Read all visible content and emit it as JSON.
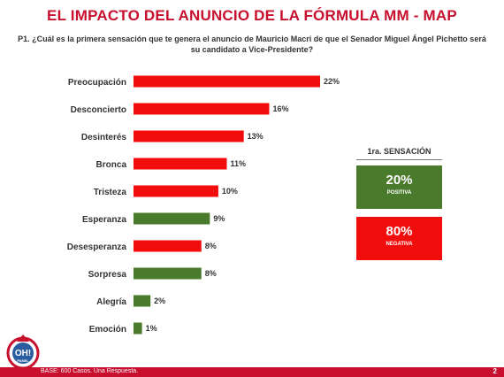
{
  "title": "EL IMPACTO DEL ANUNCIO DE LA FÓRMULA MM - MAP",
  "question": "P1. ¿Cuál es la primera sensación que te genera el anuncio de Mauricio Macri de que el Senador Miguel Ángel Pichetto será su candidato a Vice-Presidente?",
  "colors": {
    "negative": "#f20d0d",
    "positive": "#4a7a2c",
    "accent": "#c8102e"
  },
  "chart_data": {
    "type": "bar",
    "orientation": "horizontal",
    "categories": [
      "Preocupación",
      "Desconcierto",
      "Desinterés",
      "Bronca",
      "Tristeza",
      "Esperanza",
      "Desesperanza",
      "Sorpresa",
      "Alegría",
      "Emoción"
    ],
    "values": [
      22,
      16,
      13,
      11,
      10,
      9,
      8,
      8,
      2,
      1
    ],
    "value_labels": [
      "22%",
      "16%",
      "13%",
      "11%",
      "10%",
      "9%",
      "8%",
      "8%",
      "2%",
      "1%"
    ],
    "sentiment": [
      "negative",
      "negative",
      "negative",
      "negative",
      "negative",
      "positive",
      "negative",
      "positive",
      "positive",
      "positive"
    ],
    "xlim": [
      0,
      22
    ],
    "grid": false
  },
  "summary": {
    "title": "1ra. SENSACIÓN",
    "positive": {
      "pct": "20%",
      "label": "POSITIVA"
    },
    "negative": {
      "pct": "80%",
      "label": "NEGATIVA"
    }
  },
  "logo": {
    "text": "OH!",
    "subtext": "PANEL"
  },
  "footer": {
    "text": "BASE: 600 Casos. Una Respuesta.",
    "page": "2"
  }
}
